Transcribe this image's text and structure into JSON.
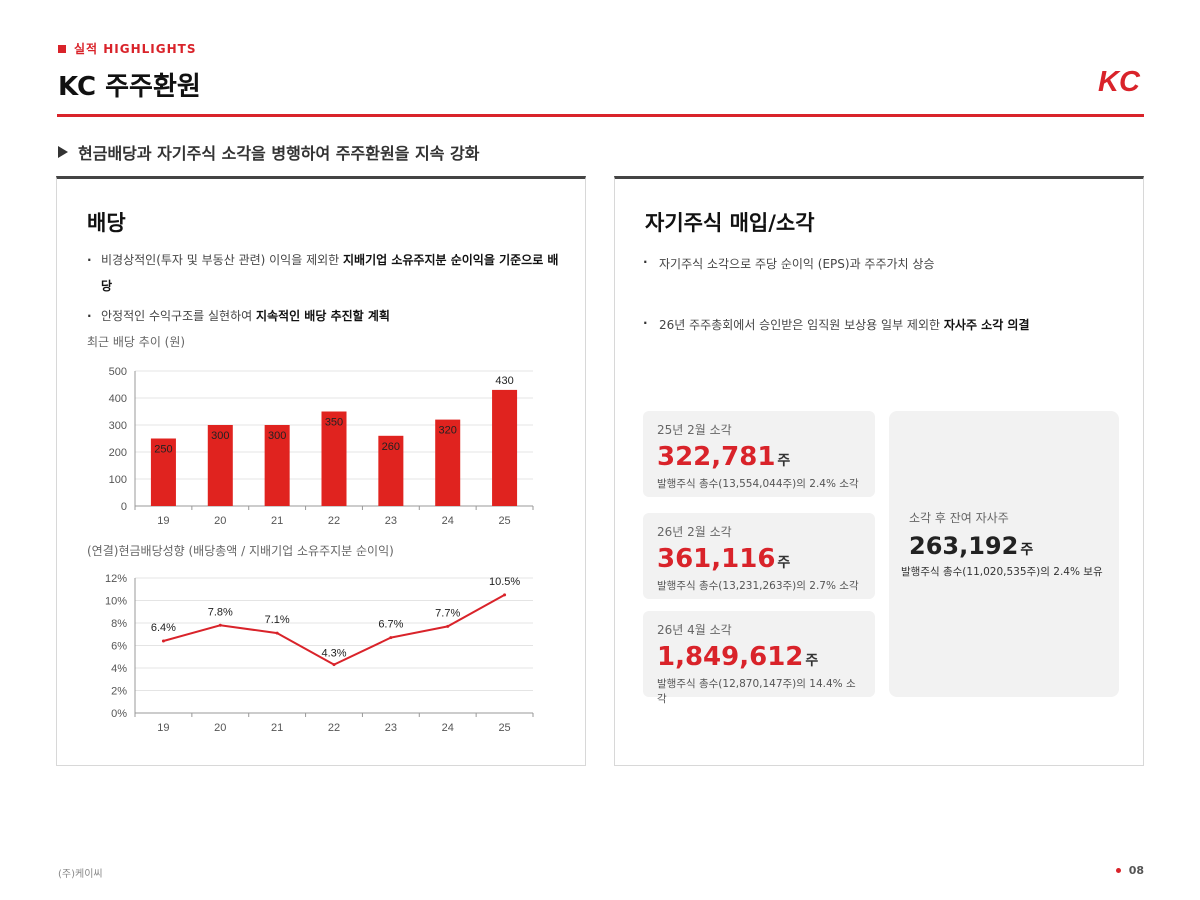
{
  "header": {
    "section_tag": "실적 HIGHLIGHTS",
    "title": "KC 주주환원",
    "logo_text": "KC"
  },
  "subtitle": "현금배당과 자기주식 소각을 병행하여 주주환원을 지속 강화",
  "dividend": {
    "title": "배당",
    "bullets": [
      {
        "plain": "비경상적인(투자 및 부동산 관련) 이익을 제외한 ",
        "bold": "지배기업 소유주지분 순이익을 기준으로 배당"
      },
      {
        "plain": "안정적인 수익구조를 실현하여 ",
        "bold": "지속적인 배당 추진할 계획"
      }
    ],
    "chart1_label": "최근 배당 추이 (원)",
    "chart2_label": "(연결)현금배당성향 (배당총액 / 지배기업 소유주지분 순이익)"
  },
  "chart_data": [
    {
      "type": "bar",
      "title": "최근 배당 추이 (원)",
      "categories": [
        "19",
        "20",
        "21",
        "22",
        "23",
        "24",
        "25"
      ],
      "values": [
        250,
        300,
        300,
        350,
        260,
        320,
        430
      ],
      "data_labels": [
        "250",
        "300",
        "300",
        "350",
        "260",
        "320",
        "430"
      ],
      "yticks": [
        "0",
        "100",
        "200",
        "300",
        "400",
        "500"
      ],
      "ylim": [
        0,
        500
      ],
      "color": "#e0231f"
    },
    {
      "type": "line",
      "title": "(연결)현금배당성향 (배당총액 / 지배기업 소유주지분 순이익)",
      "categories": [
        "19",
        "20",
        "21",
        "22",
        "23",
        "24",
        "25"
      ],
      "values": [
        6.4,
        7.8,
        7.1,
        4.3,
        6.7,
        7.7,
        10.5
      ],
      "data_labels": [
        "6.4%",
        "7.8%",
        "7.1%",
        "4.3%",
        "6.7%",
        "7.7%",
        "10.5%"
      ],
      "yticks": [
        "0%",
        "2%",
        "4%",
        "6%",
        "8%",
        "10%",
        "12%"
      ],
      "ylim": [
        0,
        12
      ],
      "color": "#d9232a"
    }
  ],
  "buyback": {
    "title": "자기주식 매입/소각",
    "bullets": [
      {
        "plain": "자기주식 소각으로 주당 순이익 (EPS)과 주주가치 상승",
        "bold": ""
      },
      {
        "plain": "26년 주주총회에서 승인받은 임직원 보상용 일부 제외한 ",
        "bold": "자사주 소각 의결"
      }
    ],
    "cards": [
      {
        "label": "25년 2월 소각",
        "value": "322,781",
        "unit": "주",
        "note": "발행주식 총수(13,554,044주)의 2.4% 소각"
      },
      {
        "label": "26년 2월 소각",
        "value": "361,116",
        "unit": "주",
        "note": "발행주식 총수(13,231,263주)의 2.7% 소각"
      },
      {
        "label": "26년 4월 소각",
        "value": "1,849,612",
        "unit": "주",
        "note": "발행주식 총수(12,870,147주)의 14.4% 소각"
      }
    ],
    "summary": {
      "label": "소각 후 잔여 자사주",
      "value": "263,192",
      "unit": "주",
      "note": "발행주식 총수(11,020,535주)의 2.4% 보유"
    }
  },
  "footer": {
    "company": "(주)케이씨",
    "page": "08"
  },
  "colors": {
    "accent": "#d9232a"
  }
}
